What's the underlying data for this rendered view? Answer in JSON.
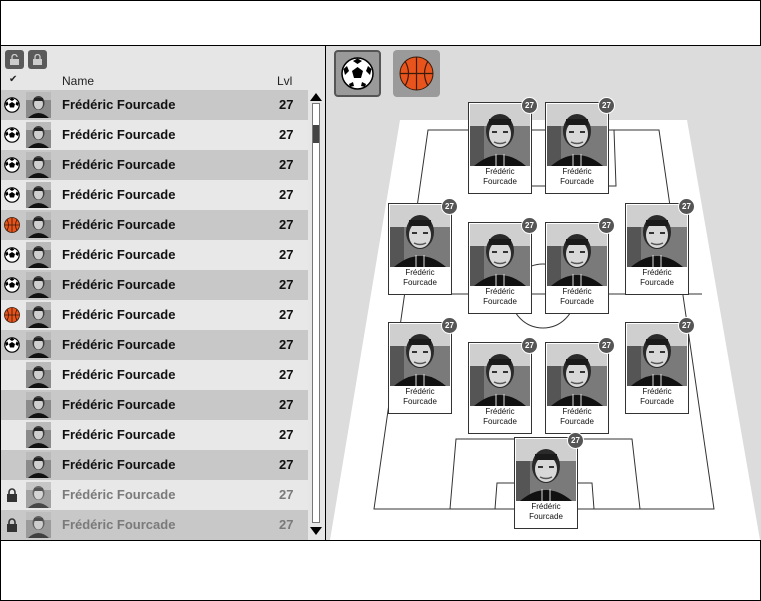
{
  "list_header": {
    "check": "✔",
    "name": "Name",
    "lvl": "Lvl"
  },
  "sport_tabs": [
    {
      "name": "soccer",
      "icon": "soccer-ball-icon",
      "active": true
    },
    {
      "name": "basketball",
      "icon": "basketball-icon",
      "active": false
    }
  ],
  "players": [
    {
      "name": "Frédéric Fourcade",
      "lvl": "27",
      "sport": "soccer",
      "locked": false
    },
    {
      "name": "Frédéric Fourcade",
      "lvl": "27",
      "sport": "soccer",
      "locked": false
    },
    {
      "name": "Frédéric Fourcade",
      "lvl": "27",
      "sport": "soccer",
      "locked": false
    },
    {
      "name": "Frédéric Fourcade",
      "lvl": "27",
      "sport": "soccer",
      "locked": false
    },
    {
      "name": "Frédéric Fourcade",
      "lvl": "27",
      "sport": "basketball",
      "locked": false
    },
    {
      "name": "Frédéric Fourcade",
      "lvl": "27",
      "sport": "soccer",
      "locked": false
    },
    {
      "name": "Frédéric Fourcade",
      "lvl": "27",
      "sport": "soccer",
      "locked": false
    },
    {
      "name": "Frédéric Fourcade",
      "lvl": "27",
      "sport": "basketball",
      "locked": false
    },
    {
      "name": "Frédéric Fourcade",
      "lvl": "27",
      "sport": "soccer",
      "locked": false
    },
    {
      "name": "Frédéric Fourcade",
      "lvl": "27",
      "sport": "",
      "locked": false
    },
    {
      "name": "Frédéric Fourcade",
      "lvl": "27",
      "sport": "",
      "locked": false
    },
    {
      "name": "Frédéric Fourcade",
      "lvl": "27",
      "sport": "",
      "locked": false
    },
    {
      "name": "Frédéric Fourcade",
      "lvl": "27",
      "sport": "",
      "locked": false
    },
    {
      "name": "Frédéric Fourcade",
      "lvl": "27",
      "sport": "lock",
      "locked": true
    },
    {
      "name": "Frédéric Fourcade",
      "lvl": "27",
      "sport": "lock",
      "locked": true
    }
  ],
  "lineup": [
    {
      "name_line1": "Frédéric",
      "name_line2": "Fourcade",
      "lvl": "27"
    },
    {
      "name_line1": "Frédéric",
      "name_line2": "Fourcade",
      "lvl": "27"
    },
    {
      "name_line1": "Frédéric",
      "name_line2": "Fourcade",
      "lvl": "27"
    },
    {
      "name_line1": "Frédéric",
      "name_line2": "Fourcade",
      "lvl": "27"
    },
    {
      "name_line1": "Frédéric",
      "name_line2": "Fourcade",
      "lvl": "27"
    },
    {
      "name_line1": "Frédéric",
      "name_line2": "Fourcade",
      "lvl": "27"
    },
    {
      "name_line1": "Frédéric",
      "name_line2": "Fourcade",
      "lvl": "27"
    },
    {
      "name_line1": "Frédéric",
      "name_line2": "Fourcade",
      "lvl": "27"
    },
    {
      "name_line1": "Frédéric",
      "name_line2": "Fourcade",
      "lvl": "27"
    },
    {
      "name_line1": "Frédéric",
      "name_line2": "Fourcade",
      "lvl": "27"
    },
    {
      "name_line1": "Frédéric",
      "name_line2": "Fourcade",
      "lvl": "27"
    }
  ],
  "colors": {
    "row_dark": "#c8c8c8",
    "row_light": "#e8e8e8",
    "basketball": "#e8541c",
    "tab_bg": "#9a9a9a"
  }
}
